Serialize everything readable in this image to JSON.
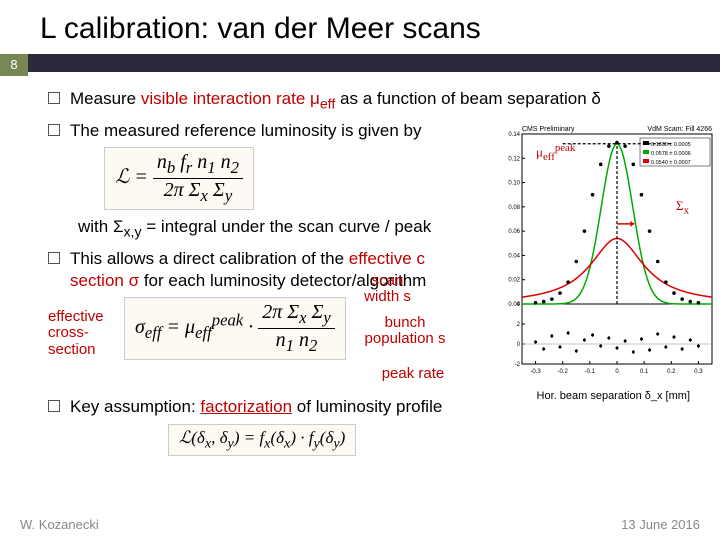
{
  "title": "L calibration: van der Meer scans",
  "page_number": "8",
  "bullets": {
    "b1_pre": "Measure ",
    "b1_red": "visible interaction rate μ",
    "b1_sub": "eff",
    "b1_post": " as a function of beam separation δ",
    "b2": "The measured reference luminosity is given by",
    "b3_pre": "with Σ",
    "b3_sub": "x,y",
    "b3_post": " = integral under the scan curve / peak",
    "b4_pre": "This allows a direct calibration of the ",
    "b4_red": "effective c",
    "b4_post2": "section σ",
    "b4_post3": " for each luminosity detector/algorithm",
    "b5_pre": "Key assumption: ",
    "b5_red": "factorization",
    "b5_post": " of luminosity profile"
  },
  "formulas": {
    "lumi": "ℒ = n_b f_r n₁ n₂ / (2π Σ_x Σ_y)",
    "sigma_eff": "σ_eff = μ_eff^peak · 2π Σ_x Σ_y / (n₁ n₂)",
    "factorize": "ℒ(δ_x, δ_y) = f_x(δ_x) · f_y(δ_y)"
  },
  "labels": {
    "eff_cross": "effective cross-section",
    "peak_rate": "peak rate",
    "scan_width": "scan width s",
    "bunch_pop": "bunch population s",
    "mu_peak": "μ_eff^peak",
    "sigma_x": "Σ_x"
  },
  "chart": {
    "header_left": "CMS Preliminary",
    "header_right": "VdM Scam: Fill 4266",
    "legend_items": [
      "0.1330 ± 0.0005",
      "0.0578 ± 0.0006",
      "0.0540 ± 0.0007"
    ],
    "ylabel": "",
    "xlabel": "Hor. beam separation δ_x [mm]",
    "xlim": [
      -0.35,
      0.35
    ],
    "ylim_top": [
      0,
      0.14
    ],
    "ylim_bot": [
      -2,
      4
    ],
    "xticks": [
      -0.3,
      -0.2,
      -0.1,
      0,
      0.1,
      0.2,
      0.3
    ],
    "yticks_top": [
      0,
      0.02,
      0.04,
      0.06,
      0.08,
      0.1,
      0.12,
      0.14
    ],
    "gaussian_peak": 0.132,
    "gaussian_sigma": 0.058,
    "lorentz_peak": 0.054,
    "colors": {
      "gaussian": "#00aa00",
      "lorentz": "#dd0000",
      "points": "#000000",
      "bg": "#ffffff",
      "grid": "#cccccc",
      "dash": "#000000"
    },
    "data_points_x": [
      -0.3,
      -0.27,
      -0.24,
      -0.21,
      -0.18,
      -0.15,
      -0.12,
      -0.09,
      -0.06,
      -0.03,
      0,
      0.03,
      0.06,
      0.09,
      0.12,
      0.15,
      0.18,
      0.21,
      0.24,
      0.27,
      0.3
    ],
    "data_points_y": [
      0.001,
      0.002,
      0.004,
      0.009,
      0.018,
      0.035,
      0.06,
      0.09,
      0.115,
      0.13,
      0.133,
      0.13,
      0.115,
      0.09,
      0.06,
      0.035,
      0.018,
      0.009,
      0.004,
      0.002,
      0.001
    ],
    "residuals_x": [
      -0.3,
      -0.27,
      -0.24,
      -0.21,
      -0.18,
      -0.15,
      -0.12,
      -0.09,
      -0.06,
      -0.03,
      0,
      0.03,
      0.06,
      0.09,
      0.12,
      0.15,
      0.18,
      0.21,
      0.24,
      0.27,
      0.3
    ],
    "residuals_y": [
      0.2,
      -0.5,
      0.8,
      -0.3,
      1.1,
      -0.7,
      0.4,
      0.9,
      -0.2,
      0.6,
      -0.4,
      0.3,
      -0.8,
      0.5,
      -0.6,
      1.0,
      -0.3,
      0.7,
      -0.5,
      0.4,
      -0.2
    ]
  },
  "footer": {
    "left": "W. Kozanecki",
    "right": "13 June 2016"
  }
}
